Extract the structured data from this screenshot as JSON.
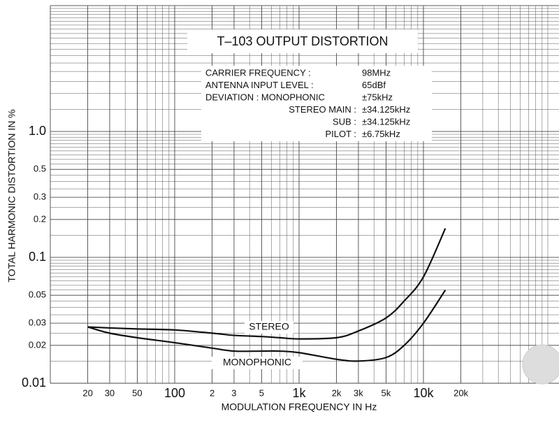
{
  "chart_data": {
    "type": "line",
    "title": "T–103 OUTPUT DISTORTION",
    "x_label": "MODULATION FREQUENCY IN Hz",
    "y_label": "TOTAL HARMONIC DISTORTION IN %",
    "log_x": true,
    "log_y": true,
    "grid": true,
    "xlim": [
      10,
      100000
    ],
    "ylim": [
      0.01,
      10
    ],
    "xticks": [
      20,
      30,
      50,
      100,
      {
        "value": 200,
        "label": "2"
      },
      {
        "value": 300,
        "label": "3"
      },
      {
        "value": 500,
        "label": "5"
      },
      {
        "value": 1000,
        "label": "1k"
      },
      {
        "value": 2000,
        "label": "2k"
      },
      {
        "value": 3000,
        "label": "3k"
      },
      {
        "value": 5000,
        "label": "5k"
      },
      {
        "value": 10000,
        "label": "10k"
      },
      {
        "value": 20000,
        "label": "20k"
      }
    ],
    "yticks": [
      0.01,
      0.02,
      0.03,
      0.05,
      0.1,
      0.2,
      0.3,
      0.5,
      {
        "value": 1,
        "label": "1.0"
      }
    ],
    "x": [
      20,
      30,
      50,
      100,
      200,
      300,
      500,
      700,
      1000,
      2000,
      3000,
      5000,
      7000,
      10000,
      15000
    ],
    "series": [
      {
        "name": "STEREO",
        "color": "#111111",
        "values": [
          0.028,
          0.0275,
          0.027,
          0.0265,
          0.025,
          0.024,
          0.0235,
          0.023,
          0.0225,
          0.023,
          0.026,
          0.033,
          0.045,
          0.07,
          0.17
        ]
      },
      {
        "name": "MONOPHONIC",
        "color": "#111111",
        "values": [
          0.028,
          0.025,
          0.023,
          0.021,
          0.019,
          0.018,
          0.018,
          0.018,
          0.0175,
          0.0155,
          0.015,
          0.016,
          0.02,
          0.03,
          0.055
        ]
      }
    ],
    "specs": [
      {
        "label": "CARRIER FREQUENCY :",
        "value": "98MHz"
      },
      {
        "label": "ANTENNA INPUT LEVEL :",
        "value": "65dBf"
      },
      {
        "label": "DEVIATION : MONOPHONIC",
        "value": "±75kHz"
      },
      {
        "label": "STEREO MAIN :",
        "value": "±34.125kHz"
      },
      {
        "label": "SUB :",
        "value": "±34.125kHz"
      },
      {
        "label": "PILOT :",
        "value": "±6.75kHz"
      }
    ]
  }
}
